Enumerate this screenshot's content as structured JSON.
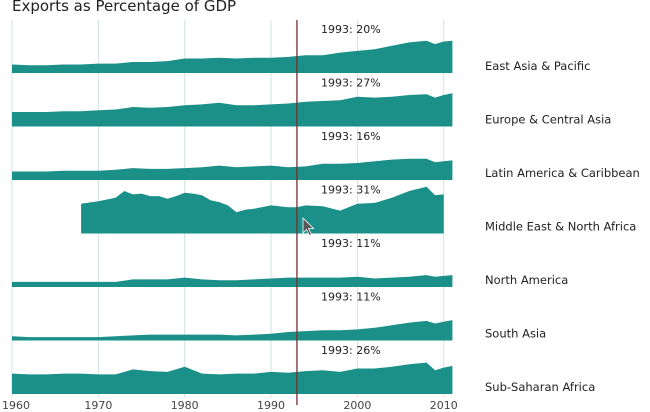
{
  "chart_data": {
    "type": "area",
    "title": "Exports as Percentage of GDP",
    "x_ticks": [
      1960,
      1970,
      1980,
      1990,
      2000,
      2010
    ],
    "xlim": [
      1960,
      2012
    ],
    "ylim": [
      0,
      75
    ],
    "grid": "vertical",
    "colors": {
      "area": "#1a9088",
      "marker": "#7a2d2d",
      "grid": "#cfe3e3"
    },
    "marker": {
      "year": 1993,
      "text": "1993: "
    },
    "series": [
      {
        "name": "East Asia & Pacific",
        "value_1993": "20%",
        "x": [
          1960,
          1962,
          1964,
          1966,
          1968,
          1970,
          1972,
          1974,
          1976,
          1978,
          1980,
          1982,
          1984,
          1986,
          1988,
          1990,
          1992,
          1994,
          1996,
          1998,
          2000,
          2002,
          2004,
          2006,
          2008,
          2009,
          2010,
          2011
        ],
        "y": [
          10,
          9,
          9,
          10,
          10,
          11,
          11,
          13,
          13,
          14,
          17,
          17,
          18,
          17,
          18,
          18,
          19,
          21,
          21,
          24,
          26,
          28,
          32,
          36,
          38,
          34,
          37,
          38
        ]
      },
      {
        "name": "Europe & Central Asia",
        "value_1993": "27%",
        "x": [
          1960,
          1962,
          1964,
          1966,
          1968,
          1970,
          1972,
          1974,
          1976,
          1978,
          1980,
          1982,
          1984,
          1986,
          1988,
          1990,
          1992,
          1994,
          1996,
          1998,
          2000,
          2002,
          2004,
          2006,
          2008,
          2009,
          2010,
          2011
        ],
        "y": [
          17,
          17,
          17,
          18,
          18,
          19,
          20,
          23,
          22,
          23,
          25,
          26,
          28,
          25,
          25,
          26,
          27,
          29,
          30,
          31,
          35,
          34,
          35,
          37,
          38,
          34,
          37,
          39
        ]
      },
      {
        "name": "Latin America & Caribbean",
        "value_1993": "16%",
        "x": [
          1960,
          1962,
          1964,
          1966,
          1968,
          1970,
          1972,
          1974,
          1976,
          1978,
          1980,
          1982,
          1984,
          1986,
          1988,
          1990,
          1992,
          1994,
          1996,
          1998,
          2000,
          2002,
          2004,
          2006,
          2008,
          2009,
          2010,
          2011
        ],
        "y": [
          10,
          10,
          10,
          11,
          11,
          11,
          12,
          14,
          13,
          13,
          14,
          15,
          17,
          15,
          16,
          17,
          15,
          16,
          19,
          19,
          20,
          22,
          24,
          25,
          25,
          21,
          22,
          23
        ]
      },
      {
        "name": "Middle East & North Africa",
        "value_1993": "31%",
        "x": [
          1968,
          1970,
          1972,
          1973,
          1974,
          1975,
          1976,
          1977,
          1978,
          1979,
          1980,
          1981,
          1982,
          1983,
          1984,
          1985,
          1986,
          1987,
          1988,
          1990,
          1992,
          1993,
          1994,
          1996,
          1998,
          2000,
          2002,
          2004,
          2006,
          2008,
          2009,
          2010
        ],
        "y": [
          35,
          38,
          42,
          50,
          46,
          47,
          44,
          44,
          41,
          44,
          48,
          47,
          45,
          39,
          37,
          33,
          25,
          28,
          29,
          33,
          31,
          31,
          33,
          32,
          27,
          35,
          36,
          42,
          50,
          55,
          45,
          46
        ]
      },
      {
        "name": "North America",
        "value_1993": "11%",
        "x": [
          1960,
          1962,
          1964,
          1966,
          1968,
          1970,
          1972,
          1974,
          1976,
          1978,
          1980,
          1982,
          1984,
          1986,
          1988,
          1990,
          1992,
          1994,
          1996,
          1998,
          2000,
          2002,
          2004,
          2006,
          2008,
          2009,
          2010,
          2011
        ],
        "y": [
          6,
          6,
          6,
          6,
          6,
          6,
          6,
          9,
          9,
          9,
          11,
          9,
          8,
          8,
          9,
          10,
          11,
          11,
          11,
          11,
          12,
          10,
          11,
          12,
          14,
          12,
          13,
          14
        ]
      },
      {
        "name": "South Asia",
        "value_1993": "11%",
        "x": [
          1960,
          1962,
          1964,
          1966,
          1968,
          1970,
          1972,
          1974,
          1976,
          1978,
          1980,
          1982,
          1984,
          1986,
          1988,
          1990,
          1992,
          1994,
          1996,
          1998,
          2000,
          2002,
          2004,
          2006,
          2008,
          2009,
          2010,
          2011
        ],
        "y": [
          5,
          4,
          4,
          4,
          4,
          4,
          5,
          6,
          7,
          7,
          7,
          7,
          7,
          6,
          7,
          8,
          10,
          11,
          12,
          12,
          13,
          15,
          18,
          21,
          23,
          20,
          22,
          24
        ]
      },
      {
        "name": "Sub-Saharan Africa",
        "value_1993": "26%",
        "x": [
          1960,
          1962,
          1964,
          1966,
          1968,
          1970,
          1972,
          1974,
          1976,
          1978,
          1980,
          1982,
          1984,
          1986,
          1988,
          1990,
          1992,
          1994,
          1996,
          1998,
          2000,
          2002,
          2004,
          2006,
          2008,
          2009,
          2010,
          2011
        ],
        "y": [
          24,
          23,
          23,
          24,
          24,
          23,
          23,
          29,
          27,
          26,
          32,
          24,
          23,
          24,
          24,
          26,
          25,
          27,
          28,
          26,
          30,
          30,
          32,
          35,
          37,
          28,
          31,
          33
        ]
      }
    ]
  }
}
